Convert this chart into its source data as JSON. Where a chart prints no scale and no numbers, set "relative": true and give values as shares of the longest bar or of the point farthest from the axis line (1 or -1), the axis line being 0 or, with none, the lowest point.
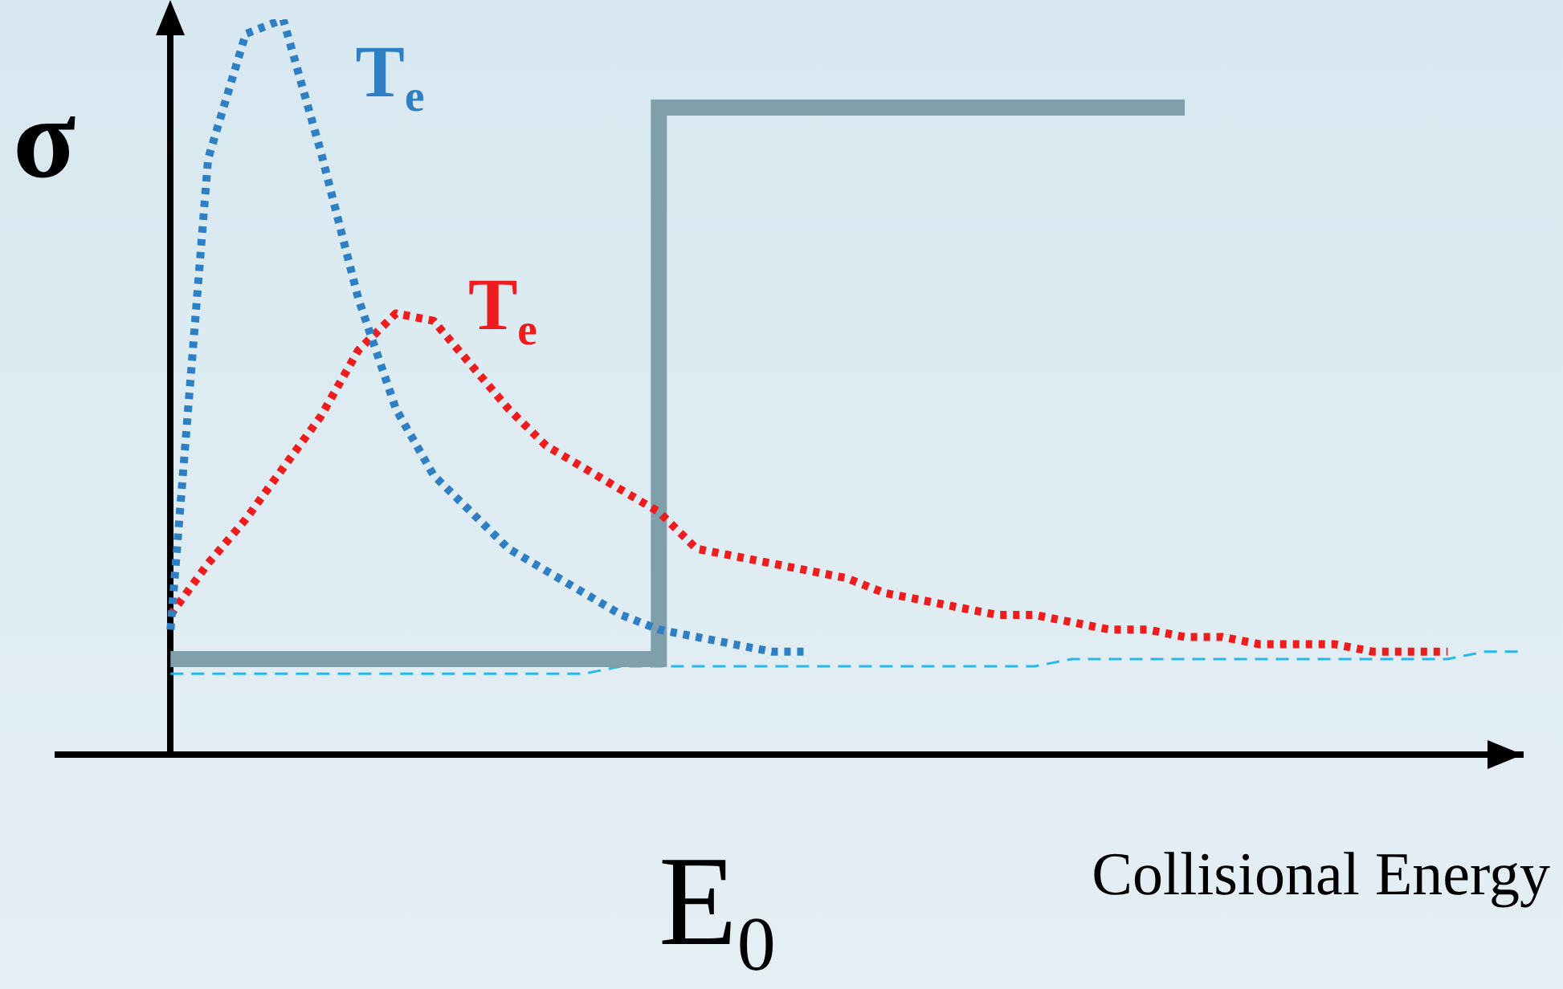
{
  "chart_data": {
    "type": "line",
    "relative": true,
    "ylabel": "σ",
    "xlabel": "Collisional Energy",
    "grid": false,
    "legend": false,
    "marker": "none",
    "annotations": [
      "E$_{0}$"
    ],
    "categories": [
      null,
      null,
      null,
      null,
      null,
      null,
      null,
      null,
      null,
      null,
      null,
      null,
      null,
      null,
      null,
      null,
      null,
      null,
      null,
      null,
      null,
      null,
      null,
      null,
      null,
      null,
      null,
      null,
      null,
      null,
      null,
      null,
      null,
      null,
      null,
      null,
      null,
      null,
      null,
      null
    ],
    "series": [
      {
        "name": "T$_{e}$",
        "color": "#2f7fc4",
        "line_style": "dotted",
        "values": [
          null,
          null,
          null,
          0.17,
          0.81,
          0.98,
          1,
          0.82,
          0.62,
          0.47,
          0.38,
          0.33,
          0.28,
          0.25,
          0.22,
          0.19,
          0.17,
          0.16,
          0.15,
          0.14,
          0.14,
          null,
          null,
          null,
          null,
          null,
          null,
          null,
          null,
          null,
          null,
          null,
          null,
          null,
          null,
          null,
          null,
          null,
          null,
          null
        ]
      },
      {
        "name": "T$_{e}$",
        "color": "#ee1c1c",
        "line_style": "dotted",
        "values": [
          null,
          null,
          null,
          0.19,
          0.26,
          0.32,
          0.39,
          0.46,
          0.55,
          0.6,
          0.59,
          0.53,
          0.47,
          0.42,
          0.39,
          0.36,
          0.33,
          0.28,
          0.27,
          0.26,
          0.25,
          0.24,
          0.22,
          0.21,
          0.2,
          0.19,
          0.19,
          0.18,
          0.17,
          0.17,
          0.16,
          0.16,
          0.15,
          0.15,
          0.15,
          0.14,
          0.14,
          0.14,
          null,
          null
        ]
      },
      {
        "type": "step",
        "color": "#7f9faa",
        "line_style": "solid",
        "values": [
          null,
          null,
          null,
          0.13,
          0.13,
          0.13,
          0.13,
          0.13,
          0.13,
          0.13,
          0.13,
          0.13,
          0.13,
          0.13,
          0.13,
          0.13,
          0.13,
          0.88,
          0.88,
          0.88,
          0.88,
          0.88,
          0.88,
          0.88,
          0.88,
          0.88,
          0.88,
          0.88,
          0.88,
          0.88,
          0.88,
          null,
          null,
          null,
          null,
          null,
          null,
          null,
          null,
          null
        ]
      },
      {
        "color": "#29b6e8",
        "line_style": "dashed",
        "values": [
          null,
          null,
          null,
          0.11,
          0.11,
          0.11,
          0.11,
          0.11,
          0.11,
          0.11,
          0.11,
          0.11,
          0.11,
          0.11,
          0.11,
          0.12,
          0.12,
          0.12,
          0.12,
          0.12,
          0.12,
          0.12,
          0.12,
          0.12,
          0.12,
          0.12,
          0.12,
          0.13,
          0.13,
          0.13,
          0.13,
          0.13,
          0.13,
          0.13,
          0.13,
          0.13,
          0.13,
          0.13,
          0.14,
          0.14
        ]
      }
    ]
  }
}
